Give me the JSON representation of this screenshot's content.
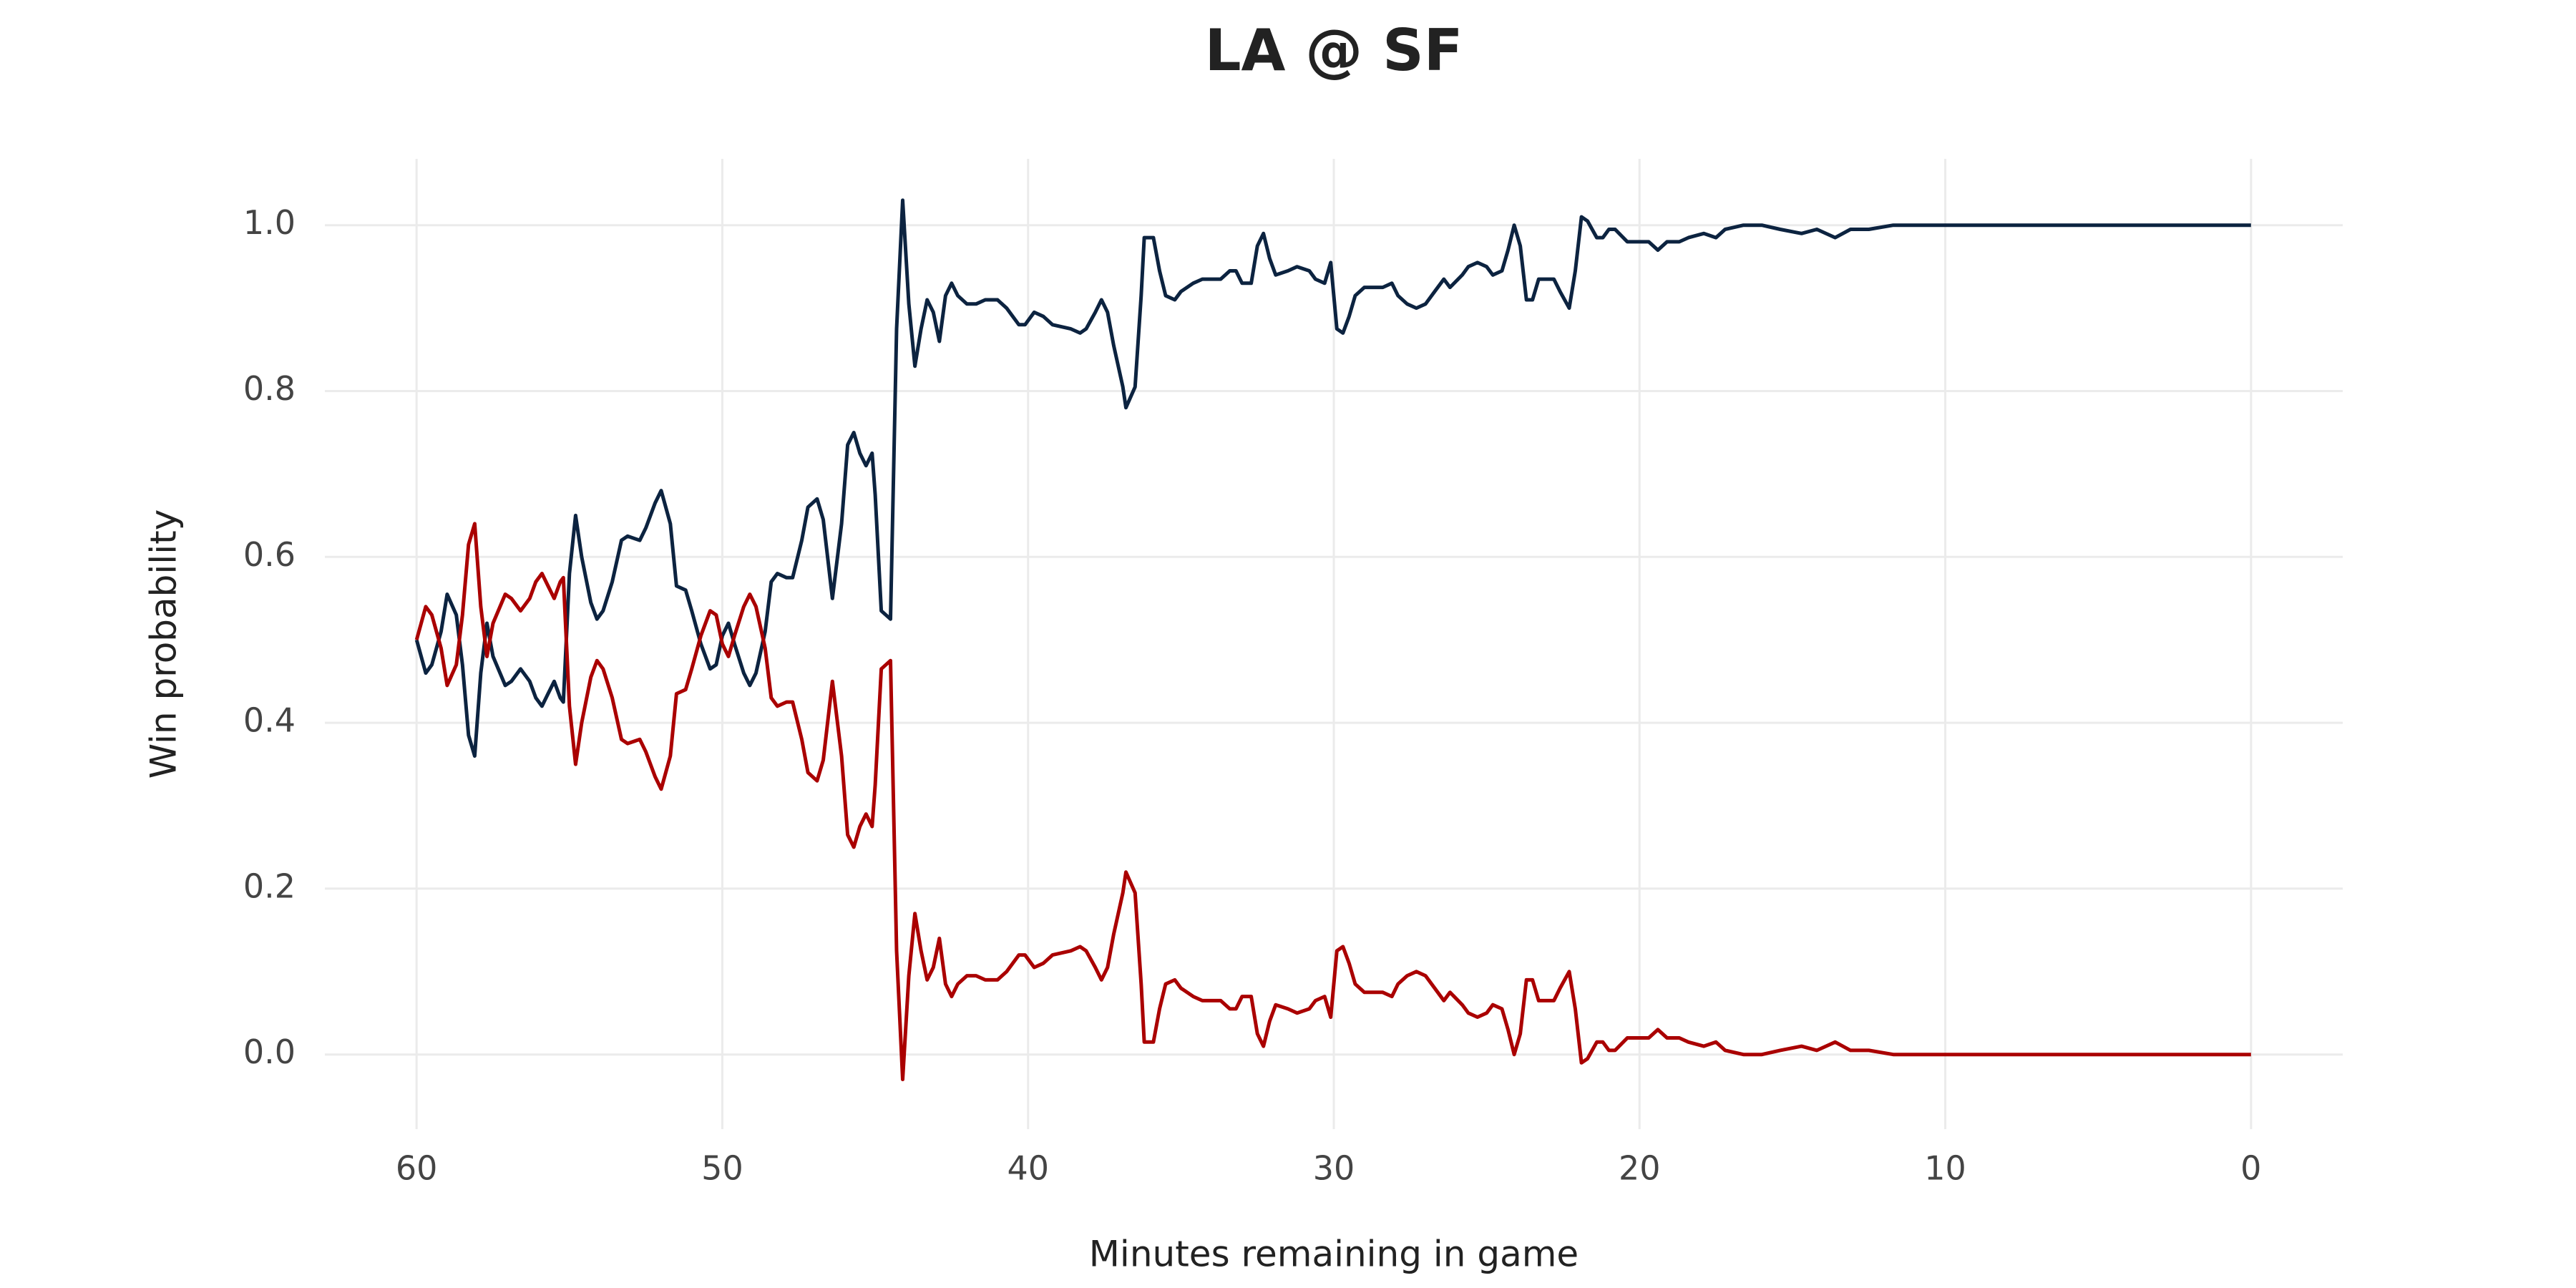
{
  "chart_data": {
    "type": "line",
    "title": "LA @ SF",
    "x_label": "Minutes remaining in game",
    "y_label": "Win probability",
    "x": [
      60,
      59.7,
      59.5,
      59.2,
      59.0,
      58.7,
      58.5,
      58.3,
      58.1,
      57.9,
      57.7,
      57.5,
      57.1,
      56.9,
      56.6,
      56.3,
      56.1,
      55.9,
      55.7,
      55.5,
      55.3,
      55.2,
      55.0,
      54.8,
      54.6,
      54.3,
      54.1,
      53.9,
      53.6,
      53.3,
      53.1,
      52.7,
      52.5,
      52.2,
      52.0,
      51.7,
      51.5,
      51.2,
      51.0,
      50.7,
      50.4,
      50.2,
      50.0,
      49.8,
      49.6,
      49.3,
      49.1,
      48.9,
      48.6,
      48.4,
      48.2,
      47.9,
      47.7,
      47.4,
      47.2,
      46.9,
      46.7,
      46.4,
      46.1,
      45.9,
      45.7,
      45.5,
      45.3,
      45.1,
      45.0,
      44.8,
      44.5,
      44.3,
      44.1,
      43.9,
      43.7,
      43.5,
      43.3,
      43.1,
      42.9,
      42.7,
      42.5,
      42.3,
      42.0,
      41.7,
      41.4,
      41.0,
      40.7,
      40.3,
      40.1,
      39.8,
      39.5,
      39.2,
      38.6,
      38.3,
      38.1,
      37.8,
      37.6,
      37.4,
      37.2,
      36.9,
      36.8,
      36.5,
      36.3,
      36.2,
      35.9,
      35.7,
      35.5,
      35.2,
      35.0,
      34.6,
      34.3,
      33.7,
      33.4,
      33.2,
      33.0,
      32.7,
      32.5,
      32.3,
      32.1,
      31.9,
      31.5,
      31.2,
      30.8,
      30.6,
      30.3,
      30.1,
      29.9,
      29.7,
      29.5,
      29.3,
      29.0,
      28.7,
      28.4,
      28.1,
      27.9,
      27.6,
      27.3,
      27.0,
      26.7,
      26.4,
      26.2,
      25.8,
      25.6,
      25.3,
      25.0,
      24.8,
      24.5,
      24.3,
      24.1,
      23.9,
      23.7,
      23.5,
      23.3,
      23.1,
      22.8,
      22.6,
      22.3,
      22.1,
      21.9,
      21.7,
      21.4,
      21.2,
      21.0,
      20.8,
      20.4,
      20.0,
      19.7,
      19.4,
      19.1,
      18.7,
      18.4,
      17.9,
      17.5,
      17.2,
      16.6,
      16.0,
      15.4,
      14.7,
      14.2,
      13.6,
      13.1,
      12.5,
      11.7,
      10.6,
      8.5,
      6.8,
      5.2,
      3.0,
      0
    ],
    "series": [
      {
        "color": "#0c2340",
        "values": [
          0.5,
          0.46,
          0.47,
          0.51,
          0.555,
          0.53,
          0.47,
          0.385,
          0.36,
          0.46,
          0.52,
          0.48,
          0.445,
          0.45,
          0.465,
          0.45,
          0.43,
          0.42,
          0.435,
          0.45,
          0.43,
          0.425,
          0.58,
          0.65,
          0.6,
          0.545,
          0.525,
          0.535,
          0.57,
          0.62,
          0.625,
          0.62,
          0.635,
          0.665,
          0.68,
          0.64,
          0.565,
          0.56,
          0.535,
          0.495,
          0.465,
          0.47,
          0.505,
          0.52,
          0.495,
          0.46,
          0.445,
          0.46,
          0.51,
          0.57,
          0.58,
          0.575,
          0.575,
          0.62,
          0.66,
          0.67,
          0.645,
          0.55,
          0.64,
          0.735,
          0.75,
          0.725,
          0.71,
          0.725,
          0.675,
          0.535,
          0.525,
          0.875,
          1.03,
          0.905,
          0.83,
          0.875,
          0.91,
          0.895,
          0.86,
          0.915,
          0.93,
          0.915,
          0.905,
          0.905,
          0.91,
          0.91,
          0.9,
          0.88,
          0.88,
          0.895,
          0.89,
          0.88,
          0.875,
          0.87,
          0.875,
          0.895,
          0.91,
          0.895,
          0.855,
          0.805,
          0.78,
          0.805,
          0.915,
          0.985,
          0.985,
          0.945,
          0.915,
          0.91,
          0.92,
          0.93,
          0.935,
          0.935,
          0.945,
          0.945,
          0.93,
          0.93,
          0.975,
          0.99,
          0.96,
          0.94,
          0.945,
          0.95,
          0.945,
          0.935,
          0.93,
          0.955,
          0.875,
          0.87,
          0.89,
          0.915,
          0.925,
          0.925,
          0.925,
          0.93,
          0.915,
          0.905,
          0.9,
          0.905,
          0.92,
          0.935,
          0.925,
          0.94,
          0.95,
          0.955,
          0.95,
          0.94,
          0.945,
          0.97,
          1.0,
          0.975,
          0.91,
          0.91,
          0.935,
          0.935,
          0.935,
          0.92,
          0.9,
          0.945,
          1.01,
          1.005,
          0.985,
          0.985,
          0.995,
          0.995,
          0.98,
          0.98,
          0.98,
          0.97,
          0.98,
          0.98,
          0.985,
          0.99,
          0.985,
          0.995,
          1,
          1,
          0.995,
          0.99,
          0.995,
          0.985,
          0.995,
          0.995,
          1,
          1,
          1,
          1,
          1,
          1,
          1
        ]
      },
      {
        "color": "#aa0000",
        "values": [
          0.5,
          0.54,
          0.53,
          0.49,
          0.445,
          0.47,
          0.53,
          0.615,
          0.64,
          0.54,
          0.48,
          0.52,
          0.555,
          0.55,
          0.535,
          0.55,
          0.57,
          0.58,
          0.565,
          0.55,
          0.57,
          0.575,
          0.42,
          0.35,
          0.4,
          0.455,
          0.475,
          0.465,
          0.43,
          0.38,
          0.375,
          0.38,
          0.365,
          0.335,
          0.32,
          0.36,
          0.435,
          0.44,
          0.465,
          0.505,
          0.535,
          0.53,
          0.495,
          0.48,
          0.505,
          0.54,
          0.555,
          0.54,
          0.49,
          0.43,
          0.42,
          0.425,
          0.425,
          0.38,
          0.34,
          0.33,
          0.355,
          0.45,
          0.36,
          0.265,
          0.25,
          0.275,
          0.29,
          0.275,
          0.325,
          0.465,
          0.475,
          0.125,
          -0.03,
          0.095,
          0.17,
          0.125,
          0.09,
          0.105,
          0.14,
          0.085,
          0.07,
          0.085,
          0.095,
          0.095,
          0.09,
          0.09,
          0.1,
          0.12,
          0.12,
          0.105,
          0.11,
          0.12,
          0.125,
          0.13,
          0.125,
          0.105,
          0.09,
          0.105,
          0.145,
          0.195,
          0.22,
          0.195,
          0.085,
          0.015,
          0.015,
          0.055,
          0.085,
          0.09,
          0.08,
          0.07,
          0.065,
          0.065,
          0.055,
          0.055,
          0.07,
          0.07,
          0.025,
          0.01,
          0.04,
          0.06,
          0.055,
          0.05,
          0.055,
          0.065,
          0.07,
          0.045,
          0.125,
          0.13,
          0.11,
          0.085,
          0.075,
          0.075,
          0.075,
          0.07,
          0.085,
          0.095,
          0.1,
          0.095,
          0.08,
          0.065,
          0.075,
          0.06,
          0.05,
          0.045,
          0.05,
          0.06,
          0.055,
          0.03,
          0,
          0.025,
          0.09,
          0.09,
          0.065,
          0.065,
          0.065,
          0.08,
          0.1,
          0.055,
          -0.01,
          -0.005,
          0.015,
          0.015,
          0.005,
          0.005,
          0.02,
          0.02,
          0.02,
          0.03,
          0.02,
          0.02,
          0.015,
          0.01,
          0.015,
          0.005,
          0,
          0,
          0.005,
          0.01,
          0.005,
          0.015,
          0.005,
          0.005,
          0,
          0,
          0,
          0,
          0,
          0,
          0
        ]
      }
    ],
    "xlim": [
      63,
      -3
    ],
    "xticks": [
      60,
      50,
      40,
      30,
      20,
      10,
      0
    ],
    "ylim": [
      -0.09,
      1.08
    ],
    "yticks": [
      {
        "value": 0,
        "label": "0.0"
      },
      {
        "value": 0.2,
        "label": "0.2"
      },
      {
        "value": 0.4,
        "label": "0.4"
      },
      {
        "value": 0.6,
        "label": "0.6"
      },
      {
        "value": 0.8,
        "label": "0.8"
      },
      {
        "value": 1,
        "label": "1.0"
      }
    ],
    "grid": true
  }
}
